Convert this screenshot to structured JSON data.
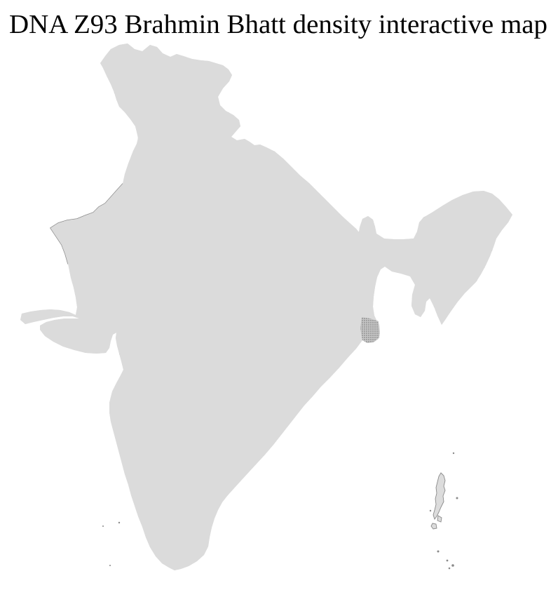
{
  "title": "DNA Z93 Brahmin Bhatt density interactive map",
  "map": {
    "name": "india-district-density-map",
    "background_color": "#ffffff",
    "base_district_fill": "#dbdbdb",
    "district_border_color": "#ffffff",
    "state_border_color": "#8c8c8c",
    "country_outline_color": "#8a8a8a",
    "highlight_state_fill": "#f2ddd0",
    "highlight_district_fill": "#9c2d00",
    "delta_stipple_dot_color": "#6f6f6f",
    "delta_stipple_base_color": "#c6c6c6",
    "highlighted_state_regions": 1,
    "highlighted_districts": 4,
    "island_chains_visible": 2,
    "small_island_dots_visible": 3
  }
}
